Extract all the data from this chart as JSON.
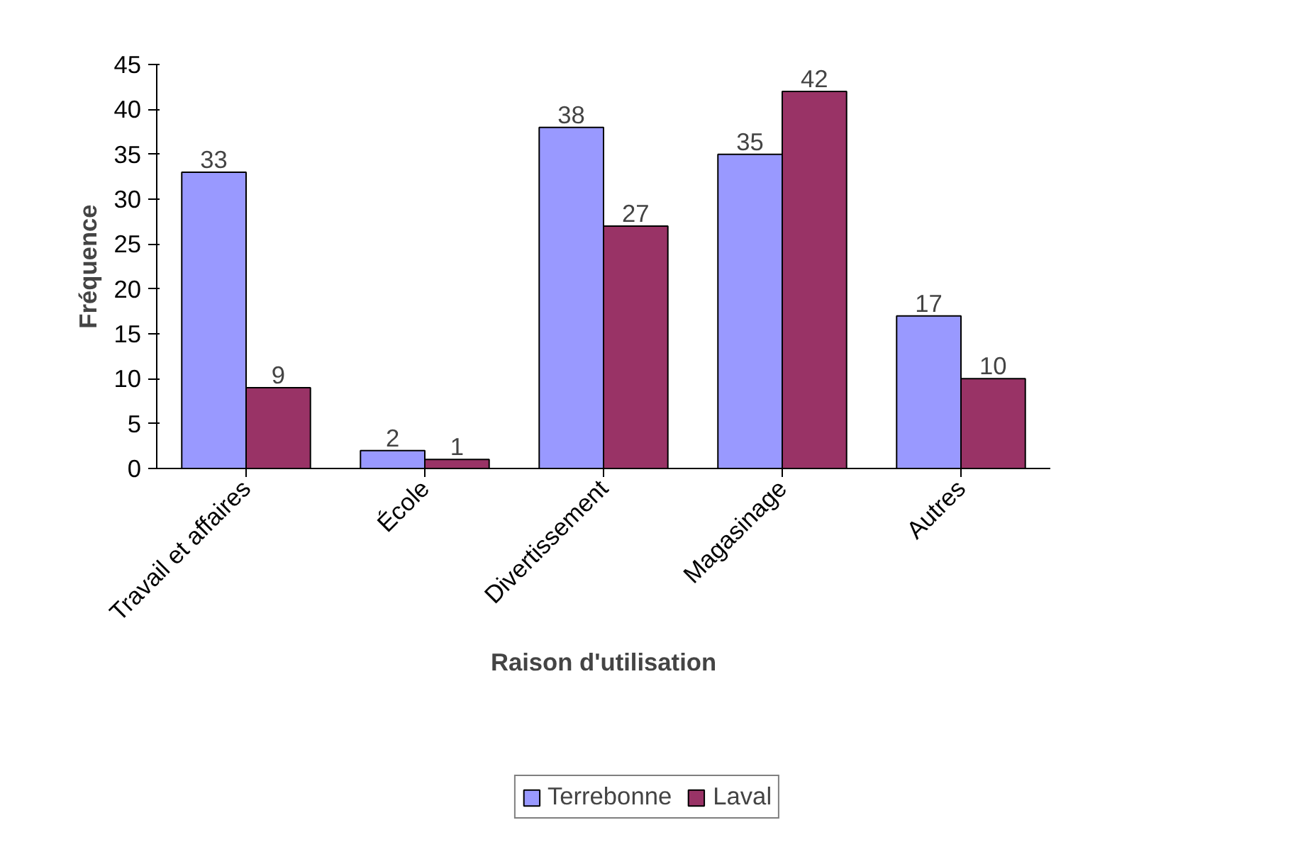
{
  "chart_data": {
    "type": "bar",
    "xlabel": "Raison d'utilisation",
    "ylabel": "Fréquence",
    "categories": [
      "Travail et affaires",
      "École",
      "Divertissement",
      "Magasinage",
      "Autres"
    ],
    "series": [
      {
        "name": "Terrebonne",
        "color": "#9999ff",
        "values": [
          33,
          2,
          38,
          35,
          17
        ]
      },
      {
        "name": "Laval",
        "color": "#993366",
        "values": [
          9,
          1,
          27,
          42,
          10
        ]
      }
    ],
    "ylim": [
      0,
      45
    ],
    "yticks": [
      0,
      5,
      10,
      15,
      20,
      25,
      30,
      35,
      40,
      45
    ],
    "data_labels": true,
    "legend": "bottom",
    "grid": false
  }
}
